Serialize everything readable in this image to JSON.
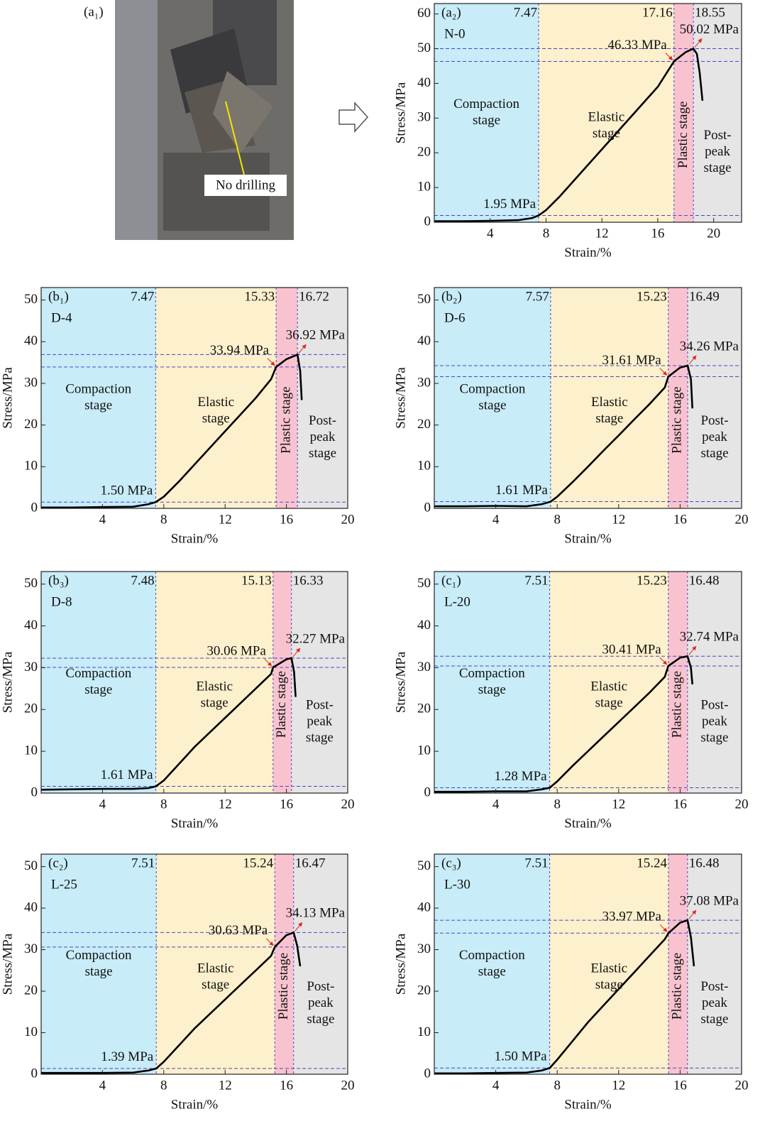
{
  "photo": {
    "label": "(a₁)",
    "annotation": "No drilling"
  },
  "stage_colors": [
    "#c8ecf8",
    "#fdf0cc",
    "#f8c3cf",
    "#e5e5e6"
  ],
  "chart_data": [
    {
      "type": "line",
      "label": "(a₂)",
      "name": "N-0",
      "xlabel": "Strain/%",
      "ylabel": "Stress/MPa",
      "xlim": [
        0,
        22
      ],
      "ylim": [
        0,
        63
      ],
      "xticks": [
        4,
        8,
        12,
        16,
        20
      ],
      "yticks": [
        0,
        10,
        20,
        30,
        40,
        50,
        60
      ],
      "boundaries": [
        7.47,
        17.16,
        18.55
      ],
      "stage_labels": [
        [
          "Compaction",
          "stage"
        ],
        [
          "Elastic",
          "stage"
        ],
        [
          "Plastic stage"
        ],
        [
          "Post-",
          "peak",
          "stage"
        ]
      ],
      "annotations": [
        {
          "value": 1.95,
          "label": "1.95 MPa"
        },
        {
          "value": 46.33,
          "label": "46.33 MPa"
        },
        {
          "value": 50.02,
          "label": "50.02 MPa"
        }
      ],
      "x": [
        0,
        2,
        4,
        6,
        7,
        7.47,
        8,
        9,
        10,
        11,
        12,
        13,
        14,
        15,
        16,
        17.16,
        18,
        18.55,
        18.8,
        19.0,
        19.2
      ],
      "values": [
        0.3,
        0.3,
        0.4,
        0.6,
        1.2,
        1.95,
        3.5,
        7.5,
        12,
        16.5,
        21,
        25.5,
        30,
        34.5,
        39,
        46.33,
        49,
        50.02,
        48.5,
        43,
        35
      ]
    },
    {
      "type": "line",
      "label": "(b₁)",
      "name": "D-4",
      "xlabel": "Strain/%",
      "ylabel": "Stress/MPa",
      "xlim": [
        0,
        20
      ],
      "ylim": [
        0,
        53
      ],
      "xticks": [
        4,
        8,
        12,
        16,
        20
      ],
      "yticks": [
        0,
        10,
        20,
        30,
        40,
        50
      ],
      "boundaries": [
        7.47,
        15.33,
        16.72
      ],
      "stage_labels": [
        [
          "Compaction",
          "stage"
        ],
        [
          "Elastic",
          "stage"
        ],
        [
          "Plastic stage"
        ],
        [
          "Post-",
          "peak",
          "stage"
        ]
      ],
      "annotations": [
        {
          "value": 1.5,
          "label": "1.50 MPa"
        },
        {
          "value": 33.94,
          "label": "33.94 MPa"
        },
        {
          "value": 36.92,
          "label": "36.92 MPa"
        }
      ],
      "x": [
        0,
        2,
        4,
        6,
        7,
        7.47,
        8,
        9,
        10,
        11,
        12,
        13,
        14,
        15,
        15.33,
        16,
        16.72,
        16.9,
        17.0
      ],
      "values": [
        0.2,
        0.2,
        0.3,
        0.4,
        1.0,
        1.5,
        2.8,
        6.5,
        10.5,
        14.5,
        18.5,
        22.5,
        26.5,
        31,
        33.94,
        35.8,
        36.92,
        33,
        26
      ]
    },
    {
      "type": "line",
      "label": "(b₂)",
      "name": "D-6",
      "xlabel": "Strain/%",
      "ylabel": "Stress/MPa",
      "xlim": [
        0,
        20
      ],
      "ylim": [
        0,
        53
      ],
      "xticks": [
        4,
        8,
        12,
        16,
        20
      ],
      "yticks": [
        0,
        10,
        20,
        30,
        40,
        50
      ],
      "boundaries": [
        7.57,
        15.23,
        16.49
      ],
      "stage_labels": [
        [
          "Compaction",
          "stage"
        ],
        [
          "Elastic",
          "stage"
        ],
        [
          "Plastic stage"
        ],
        [
          "Post-",
          "peak",
          "stage"
        ]
      ],
      "annotations": [
        {
          "value": 1.61,
          "label": "1.61 MPa"
        },
        {
          "value": 31.61,
          "label": "31.61 MPa"
        },
        {
          "value": 34.26,
          "label": "34.26 MPa"
        }
      ],
      "x": [
        0,
        2,
        4,
        6,
        7,
        7.57,
        8,
        9,
        10,
        11,
        12,
        13,
        14,
        15,
        15.23,
        16,
        16.49,
        16.7,
        16.8
      ],
      "values": [
        0.5,
        0.5,
        0.6,
        0.5,
        1.0,
        1.61,
        2.8,
        6.3,
        10,
        13.8,
        17.5,
        21.3,
        25,
        29,
        31.61,
        33.8,
        34.26,
        31,
        24
      ]
    },
    {
      "type": "line",
      "label": "(b₃)",
      "name": "D-8",
      "xlabel": "Strain/%",
      "ylabel": "Stress/MPa",
      "xlim": [
        0,
        20
      ],
      "ylim": [
        0,
        53
      ],
      "xticks": [
        4,
        8,
        12,
        16,
        20
      ],
      "yticks": [
        0,
        10,
        20,
        30,
        40,
        50
      ],
      "boundaries": [
        7.48,
        15.13,
        16.33
      ],
      "stage_labels": [
        [
          "Compaction",
          "stage"
        ],
        [
          "Elastic",
          "stage"
        ],
        [
          "Plastic stage"
        ],
        [
          "Post-",
          "peak",
          "stage"
        ]
      ],
      "annotations": [
        {
          "value": 1.61,
          "label": "1.61 MPa"
        },
        {
          "value": 30.06,
          "label": "30.06 MPa"
        },
        {
          "value": 32.27,
          "label": "32.27 MPa"
        }
      ],
      "x": [
        0,
        2,
        4,
        6,
        7,
        7.48,
        8,
        9,
        10,
        11,
        12,
        13,
        14,
        15,
        15.13,
        16,
        16.33,
        16.5,
        16.6
      ],
      "values": [
        0.8,
        0.9,
        1.0,
        1.0,
        1.2,
        1.61,
        3,
        7,
        11,
        14.5,
        18,
        21.5,
        25,
        28.5,
        30.06,
        32,
        32.27,
        29,
        23
      ]
    },
    {
      "type": "line",
      "label": "(c₁)",
      "name": "L-20",
      "xlabel": "Strain/%",
      "ylabel": "Stress/MPa",
      "xlim": [
        0,
        20
      ],
      "ylim": [
        0,
        53
      ],
      "xticks": [
        4,
        8,
        12,
        16,
        20
      ],
      "yticks": [
        0,
        10,
        20,
        30,
        40,
        50
      ],
      "boundaries": [
        7.51,
        15.23,
        16.48
      ],
      "stage_labels": [
        [
          "Compaction",
          "stage"
        ],
        [
          "Elastic",
          "stage"
        ],
        [
          "Plastic stage"
        ],
        [
          "Post-",
          "peak",
          "stage"
        ]
      ],
      "annotations": [
        {
          "value": 1.28,
          "label": "1.28 MPa"
        },
        {
          "value": 30.41,
          "label": "30.41 MPa"
        },
        {
          "value": 32.74,
          "label": "32.74 MPa"
        }
      ],
      "x": [
        0,
        2,
        4,
        6,
        7,
        7.51,
        8,
        9,
        10,
        11,
        12,
        13,
        14,
        15,
        15.23,
        16,
        16.48,
        16.7,
        16.8
      ],
      "values": [
        0.3,
        0.3,
        0.4,
        0.4,
        0.9,
        1.28,
        2.8,
        6.5,
        10,
        13.5,
        17,
        20.5,
        24,
        27.8,
        30.41,
        32.4,
        32.74,
        30,
        26
      ]
    },
    {
      "type": "line",
      "label": "(c₂)",
      "name": "L-25",
      "xlabel": "Strain/%",
      "ylabel": "Stress/MPa",
      "xlim": [
        0,
        20
      ],
      "ylim": [
        0,
        53
      ],
      "xticks": [
        4,
        8,
        12,
        16,
        20
      ],
      "yticks": [
        0,
        10,
        20,
        30,
        40,
        50
      ],
      "boundaries": [
        7.51,
        15.24,
        16.47
      ],
      "stage_labels": [
        [
          "Compaction",
          "stage"
        ],
        [
          "Elastic",
          "stage"
        ],
        [
          "Plastic stage"
        ],
        [
          "Post-",
          "peak",
          "stage"
        ]
      ],
      "annotations": [
        {
          "value": 1.39,
          "label": "1.39 MPa"
        },
        {
          "value": 30.63,
          "label": "30.63 MPa"
        },
        {
          "value": 34.13,
          "label": "34.13 MPa"
        }
      ],
      "x": [
        0,
        2,
        4,
        6,
        7,
        7.51,
        8,
        9,
        10,
        11,
        12,
        13,
        14,
        15,
        15.24,
        16,
        16.47,
        16.7,
        16.9
      ],
      "values": [
        0.3,
        0.3,
        0.3,
        0.4,
        0.9,
        1.39,
        3,
        7,
        11,
        14.5,
        18,
        21.5,
        25,
        28.5,
        30.63,
        33.5,
        34.13,
        31,
        26
      ]
    },
    {
      "type": "line",
      "label": "(c₃)",
      "name": "L-30",
      "xlabel": "Strain/%",
      "ylabel": "Stress/MPa",
      "xlim": [
        0,
        20
      ],
      "ylim": [
        0,
        53
      ],
      "xticks": [
        4,
        8,
        12,
        16,
        20
      ],
      "yticks": [
        0,
        10,
        20,
        30,
        40,
        50
      ],
      "boundaries": [
        7.51,
        15.24,
        16.48
      ],
      "stage_labels": [
        [
          "Compaction",
          "stage"
        ],
        [
          "Elastic",
          "stage"
        ],
        [
          "Plastic stage"
        ],
        [
          "Post-",
          "peak",
          "stage"
        ]
      ],
      "annotations": [
        {
          "value": 1.5,
          "label": "1.50 MPa"
        },
        {
          "value": 33.97,
          "label": "33.97 MPa"
        },
        {
          "value": 37.08,
          "label": "37.08 MPa"
        }
      ],
      "x": [
        0,
        2,
        4,
        6,
        7,
        7.51,
        8,
        9,
        10,
        11,
        12,
        13,
        14,
        15,
        15.24,
        16,
        16.48,
        16.7,
        16.9
      ],
      "values": [
        0.2,
        0.2,
        0.3,
        0.4,
        0.9,
        1.5,
        3.5,
        8,
        12.5,
        16.5,
        20.5,
        24.5,
        28.5,
        32.5,
        33.97,
        36.5,
        37.08,
        33,
        26
      ]
    }
  ]
}
